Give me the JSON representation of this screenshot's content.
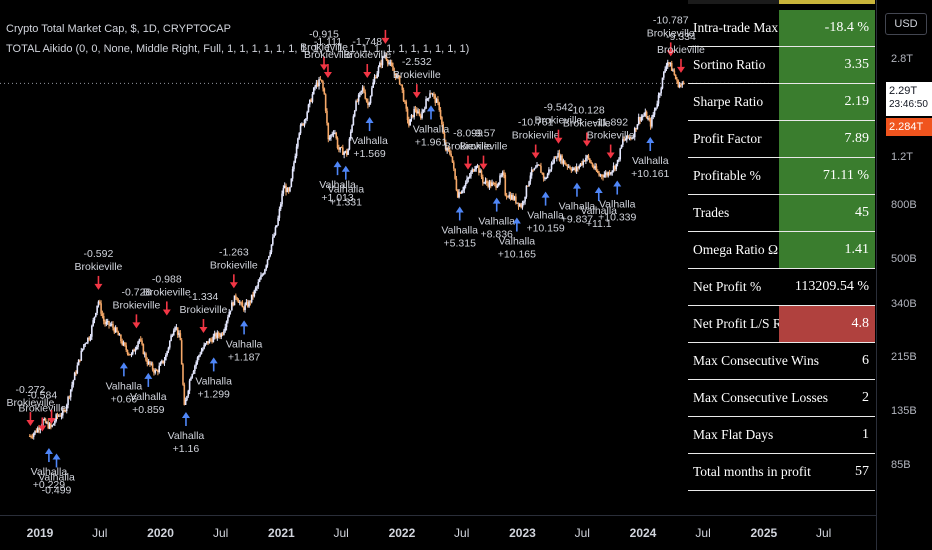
{
  "header": {
    "title": "Crypto Total Market Cap, $, 1D, CRYPTOCAP",
    "indicator": "TOTAL Aikido (0, 0, None, Middle Right, Full, 1, 1, 1, 1, 1, 1, 1, 1, 1, 1, 1, 1, 1, 1, 1, 1, 1, 1, 1, 1)"
  },
  "colors": {
    "background": "#000000",
    "up_candle": "#e5e8ff",
    "down_candle": "#f5a868",
    "sell_arrow": "#f23645",
    "buy_arrow": "#4f86f7",
    "green_cell": "#3a7d2e",
    "red_cell": "#b0413e",
    "current_price_bg": "#f0541e"
  },
  "stats": [
    {
      "label": "Intra-trade Max DD",
      "value": "-18.4 %",
      "style": "green"
    },
    {
      "label": "Sortino Ratio",
      "value": "3.35",
      "style": "green"
    },
    {
      "label": "Sharpe Ratio",
      "value": "2.19",
      "style": "green"
    },
    {
      "label": "Profit Factor",
      "value": "7.89",
      "style": "green"
    },
    {
      "label": "Profitable %",
      "value": "71.11 %",
      "style": "green"
    },
    {
      "label": "Trades",
      "value": "45",
      "style": "green"
    },
    {
      "label": "Omega Ratio Ω",
      "value": "1.41",
      "style": "green"
    },
    {
      "label": "Net Profit %",
      "value": "113209.54 %",
      "style": "none"
    },
    {
      "label": "Net Profit L/S Ratio",
      "value": "4.8",
      "style": "red"
    },
    {
      "label": "Max Consecutive Wins",
      "value": "6",
      "style": "none"
    },
    {
      "label": "Max Consecutive Losses",
      "value": "2",
      "style": "none"
    },
    {
      "label": "Max Flat Days",
      "value": "1",
      "style": "none"
    },
    {
      "label": "Total months in profit",
      "value": "57",
      "style": "none"
    }
  ],
  "price_axis": {
    "currency_button": "USD",
    "current_price": "2.29T",
    "countdown": "23:46:50",
    "second_price": "2.284T"
  },
  "chart_data": {
    "type": "line",
    "scale": "log",
    "x_ticks": [
      {
        "label": "2019",
        "date": "2019-01-01",
        "bold": true
      },
      {
        "label": "Jul",
        "date": "2019-07-01",
        "bold": false
      },
      {
        "label": "2020",
        "date": "2020-01-01",
        "bold": true
      },
      {
        "label": "Jul",
        "date": "2020-07-01",
        "bold": false
      },
      {
        "label": "2021",
        "date": "2021-01-01",
        "bold": true
      },
      {
        "label": "Jul",
        "date": "2021-07-01",
        "bold": false
      },
      {
        "label": "2022",
        "date": "2022-01-01",
        "bold": true
      },
      {
        "label": "Jul",
        "date": "2022-07-01",
        "bold": false
      },
      {
        "label": "2023",
        "date": "2023-01-01",
        "bold": true
      },
      {
        "label": "Jul",
        "date": "2023-07-01",
        "bold": false
      },
      {
        "label": "2024",
        "date": "2024-01-01",
        "bold": true
      },
      {
        "label": "Jul",
        "date": "2024-07-01",
        "bold": false
      },
      {
        "label": "2025",
        "date": "2025-01-01",
        "bold": true
      },
      {
        "label": "Jul",
        "date": "2025-07-01",
        "bold": false
      }
    ],
    "y_ticks": [
      {
        "label": "2.8T",
        "value": 2800000000000.0
      },
      {
        "label": "1.2T",
        "value": 1200000000000.0
      },
      {
        "label": "800B",
        "value": 800000000000.0
      },
      {
        "label": "500B",
        "value": 500000000000.0
      },
      {
        "label": "340B",
        "value": 340000000000.0
      },
      {
        "label": "215B",
        "value": 215000000000.0
      },
      {
        "label": "135B",
        "value": 135000000000.0
      },
      {
        "label": "85B",
        "value": 85000000000.0
      }
    ],
    "current_price_value": 2290000000000.0,
    "price_series": {
      "dates": [
        "2018-12-01",
        "2018-12-20",
        "2019-01-10",
        "2019-02-05",
        "2019-02-20",
        "2019-03-15",
        "2019-04-10",
        "2019-05-15",
        "2019-06-01",
        "2019-06-26",
        "2019-07-15",
        "2019-08-05",
        "2019-08-20",
        "2019-09-15",
        "2019-10-05",
        "2019-10-28",
        "2019-11-20",
        "2019-12-18",
        "2020-01-15",
        "2020-02-13",
        "2020-03-01",
        "2020-03-13",
        "2020-04-01",
        "2020-04-29",
        "2020-05-20",
        "2020-06-15",
        "2020-07-05",
        "2020-07-28",
        "2020-08-17",
        "2020-09-05",
        "2020-09-25",
        "2020-10-20",
        "2020-11-10",
        "2020-11-30",
        "2020-12-20",
        "2021-01-08",
        "2021-01-25",
        "2021-02-21",
        "2021-03-10",
        "2021-04-14",
        "2021-05-01",
        "2021-05-12",
        "2021-05-23",
        "2021-06-10",
        "2021-06-22",
        "2021-07-20",
        "2021-08-10",
        "2021-09-05",
        "2021-09-20",
        "2021-10-10",
        "2021-11-10",
        "2021-12-05",
        "2021-12-28",
        "2022-01-22",
        "2022-02-10",
        "2022-02-24",
        "2022-03-28",
        "2022-04-25",
        "2022-05-12",
        "2022-05-30",
        "2022-06-18",
        "2022-07-10",
        "2022-08-14",
        "2022-09-05",
        "2022-10-10",
        "2022-11-05",
        "2022-11-10",
        "2022-12-01",
        "2022-12-30",
        "2023-01-25",
        "2023-02-20",
        "2023-03-10",
        "2023-04-14",
        "2023-05-10",
        "2023-06-10",
        "2023-07-14",
        "2023-08-20",
        "2023-09-15",
        "2023-10-15",
        "2023-11-01",
        "2023-11-30",
        "2023-12-20",
        "2024-01-10",
        "2024-01-23",
        "2024-02-15",
        "2024-03-14",
        "2024-04-01",
        "2024-04-13",
        "2024-04-25",
        "2024-05-05"
      ],
      "values": [
        110000000000.0,
        115000000000.0,
        125000000000.0,
        118000000000.0,
        130000000000.0,
        135000000000.0,
        175000000000.0,
        245000000000.0,
        260000000000.0,
        355000000000.0,
        290000000000.0,
        285000000000.0,
        270000000000.0,
        235000000000.0,
        220000000000.0,
        255000000000.0,
        210000000000.0,
        190000000000.0,
        215000000000.0,
        290000000000.0,
        250000000000.0,
        140000000000.0,
        185000000000.0,
        225000000000.0,
        245000000000.0,
        260000000000.0,
        265000000000.0,
        325000000000.0,
        370000000000.0,
        330000000000.0,
        345000000000.0,
        400000000000.0,
        460000000000.0,
        560000000000.0,
        690000000000.0,
        950000000000.0,
        880000000000.0,
        1500000000000.0,
        1650000000000.0,
        2250000000000.0,
        2350000000000.0,
        2050000000000.0,
        1400000000000.0,
        1550000000000.0,
        1300000000000.0,
        1250000000000.0,
        1850000000000.0,
        2200000000000.0,
        1900000000000.0,
        2400000000000.0,
        2950000000000.0,
        2550000000000.0,
        2300000000000.0,
        1600000000000.0,
        1850000000000.0,
        1700000000000.0,
        2150000000000.0,
        1850000000000.0,
        1300000000000.0,
        1250000000000.0,
        880000000000.0,
        950000000000.0,
        1150000000000.0,
        980000000000.0,
        950000000000.0,
        1050000000000.0,
        890000000000.0,
        860000000000.0,
        795000000000.0,
        1050000000000.0,
        1120000000000.0,
        1000000000000.0,
        1250000000000.0,
        1150000000000.0,
        1080000000000.0,
        1220000000000.0,
        1040000000000.0,
        1050000000000.0,
        1150000000000.0,
        1400000000000.0,
        1450000000000.0,
        1700000000000.0,
        1750000000000.0,
        1600000000000.0,
        2000000000000.0,
        2800000000000.0,
        2550000000000.0,
        2300000000000.0,
        2250000000000.0,
        2280000000000.0
      ]
    },
    "signals": [
      {
        "date": "2018-12-03",
        "type": "sell",
        "price": 110000000000.0,
        "value": "-0.272",
        "label": "Brokieville"
      },
      {
        "date": "2019-01-08",
        "type": "sell",
        "price": 105000000000.0,
        "value": "-0.584",
        "label": "Brokieville"
      },
      {
        "date": "2019-01-28",
        "type": "buy",
        "price": 110000000000.0,
        "value": "+0.229",
        "label": "Valhalla"
      },
      {
        "date": "2019-02-05",
        "type": "sell",
        "price": 112000000000.0,
        "value": "",
        "label": ""
      },
      {
        "date": "2019-02-20",
        "type": "buy",
        "price": 105000000000.0,
        "value": "-0.499",
        "label": "Valhalla"
      },
      {
        "date": "2019-06-27",
        "type": "sell",
        "price": 355000000000.0,
        "value": "-0.592",
        "label": "Brokieville"
      },
      {
        "date": "2019-09-12",
        "type": "buy",
        "price": 230000000000.0,
        "value": "+0.66",
        "label": "Valhalla"
      },
      {
        "date": "2019-10-20",
        "type": "sell",
        "price": 255000000000.0,
        "value": "-0.728",
        "label": "Brokieville"
      },
      {
        "date": "2019-11-25",
        "type": "buy",
        "price": 210000000000.0,
        "value": "+0.859",
        "label": "Valhalla"
      },
      {
        "date": "2020-01-20",
        "type": "sell",
        "price": 285000000000.0,
        "value": "-0.988",
        "label": "Brokieville"
      },
      {
        "date": "2020-03-18",
        "type": "buy",
        "price": 150000000000.0,
        "value": "+1.16",
        "label": "Valhalla"
      },
      {
        "date": "2020-05-10",
        "type": "sell",
        "price": 245000000000.0,
        "value": "-1.334",
        "label": "Brokieville"
      },
      {
        "date": "2020-06-10",
        "type": "buy",
        "price": 240000000000.0,
        "value": "+1.299",
        "label": "Valhalla"
      },
      {
        "date": "2020-08-10",
        "type": "sell",
        "price": 360000000000.0,
        "value": "-1.263",
        "label": "Brokieville"
      },
      {
        "date": "2020-09-10",
        "type": "buy",
        "price": 330000000000.0,
        "value": "+1.187",
        "label": "Valhalla"
      },
      {
        "date": "2021-05-10",
        "type": "sell",
        "price": 2350000000000.0,
        "value": "-0.915",
        "label": "Brokieville"
      },
      {
        "date": "2021-05-22",
        "type": "sell",
        "price": 2200000000000.0,
        "value": "-1.111",
        "label": "Brokieville"
      },
      {
        "date": "2021-06-20",
        "type": "buy",
        "price": 1300000000000.0,
        "value": "+1.013",
        "label": "Valhalla"
      },
      {
        "date": "2021-07-15",
        "type": "buy",
        "price": 1250000000000.0,
        "value": "+1.331",
        "label": "Valhalla"
      },
      {
        "date": "2021-09-18",
        "type": "sell",
        "price": 2200000000000.0,
        "value": "-1.748",
        "label": "Brokieville"
      },
      {
        "date": "2021-09-25",
        "type": "buy",
        "price": 1900000000000.0,
        "value": "+1.569",
        "label": "Valhalla"
      },
      {
        "date": "2021-11-12",
        "type": "sell",
        "price": 2950000000000.0,
        "value": "",
        "label": ""
      },
      {
        "date": "2022-02-15",
        "type": "sell",
        "price": 1850000000000.0,
        "value": "-2.532",
        "label": "Brokieville"
      },
      {
        "date": "2022-03-30",
        "type": "buy",
        "price": 2100000000000.0,
        "value": "+1.961",
        "label": "Valhalla"
      },
      {
        "date": "2022-06-25",
        "type": "buy",
        "price": 880000000000.0,
        "value": "+5.315",
        "label": "Valhalla"
      },
      {
        "date": "2022-07-20",
        "type": "sell",
        "price": 1000000000000.0,
        "value": "-8.099",
        "label": "Brokieville"
      },
      {
        "date": "2022-09-05",
        "type": "sell",
        "price": 1000000000000.0,
        "value": "-9.57",
        "label": "Brokieville"
      },
      {
        "date": "2022-10-15",
        "type": "buy",
        "price": 950000000000.0,
        "value": "+8.836",
        "label": "Valhalla"
      },
      {
        "date": "2022-12-15",
        "type": "buy",
        "price": 800000000000.0,
        "value": "+10.165",
        "label": "Valhalla"
      },
      {
        "date": "2023-02-10",
        "type": "sell",
        "price": 1100000000000.0,
        "value": "-10.761",
        "label": "Brokieville"
      },
      {
        "date": "2023-03-12",
        "type": "buy",
        "price": 1000000000000.0,
        "value": "+10.159",
        "label": "Valhalla"
      },
      {
        "date": "2023-04-20",
        "type": "sell",
        "price": 1250000000000.0,
        "value": "-9.542",
        "label": "Brokieville"
      },
      {
        "date": "2023-06-15",
        "type": "buy",
        "price": 1080000000000.0,
        "value": "+9.837",
        "label": "Valhalla"
      },
      {
        "date": "2023-07-15",
        "type": "sell",
        "price": 1220000000000.0,
        "value": "-10.128",
        "label": "Brokieville"
      },
      {
        "date": "2023-08-20",
        "type": "buy",
        "price": 1040000000000.0,
        "value": "+11.1",
        "label": "Valhalla"
      },
      {
        "date": "2023-09-25",
        "type": "sell",
        "price": 1100000000000.0,
        "value": "-11.892",
        "label": "Brokieville"
      },
      {
        "date": "2023-10-15",
        "type": "buy",
        "price": 1100000000000.0,
        "value": "+10.339",
        "label": "Valhalla"
      },
      {
        "date": "2024-03-25",
        "type": "sell",
        "price": 2650000000000.0,
        "value": "-10.787",
        "label": "Brokieville"
      },
      {
        "date": "2024-01-23",
        "type": "buy",
        "price": 1600000000000.0,
        "value": "+10.161",
        "label": "Valhalla"
      },
      {
        "date": "2024-04-25",
        "type": "sell",
        "price": 2300000000000.0,
        "value": "-9.334",
        "label": "Brokieville"
      }
    ]
  }
}
